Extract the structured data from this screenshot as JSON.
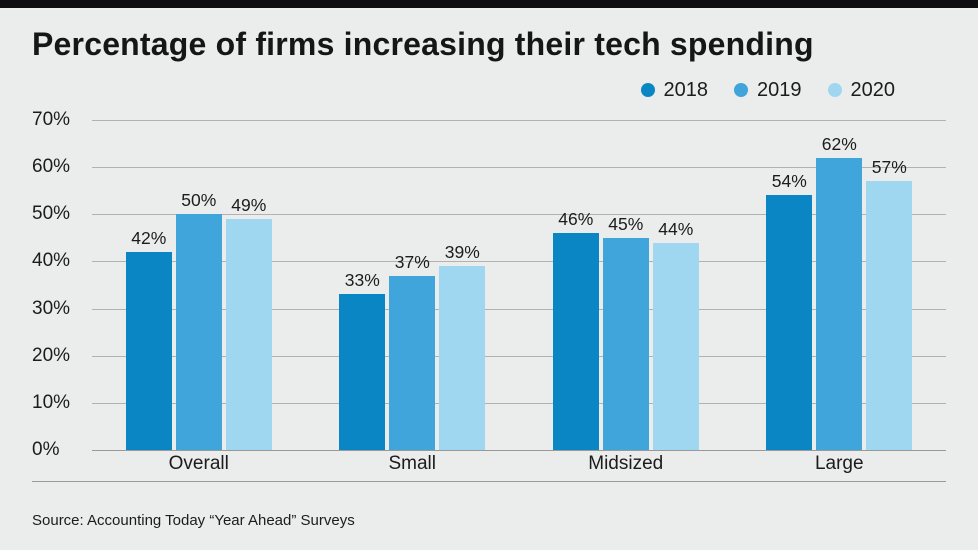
{
  "chart_data": {
    "type": "bar",
    "title": "Percentage of firms increasing their tech spending",
    "categories": [
      "Overall",
      "Small",
      "Midsized",
      "Large"
    ],
    "series": [
      {
        "name": "2018",
        "color": "#0b86c4",
        "values": [
          42,
          33,
          46,
          54
        ]
      },
      {
        "name": "2019",
        "color": "#3fa5da",
        "values": [
          50,
          37,
          45,
          62
        ]
      },
      {
        "name": "2020",
        "color": "#a0d7f0",
        "values": [
          49,
          39,
          44,
          57
        ]
      }
    ],
    "ylim": [
      0,
      70
    ],
    "yticks": [
      70,
      60,
      50,
      40,
      30,
      20,
      10,
      0
    ],
    "ytick_labels": [
      "70%",
      "60%",
      "50%",
      "40%",
      "30%",
      "20%",
      "10%",
      "0%"
    ],
    "value_suffix": "%",
    "grid": true,
    "legend_position": "top-right"
  },
  "source": "Source: Accounting Today “Year Ahead” Surveys"
}
